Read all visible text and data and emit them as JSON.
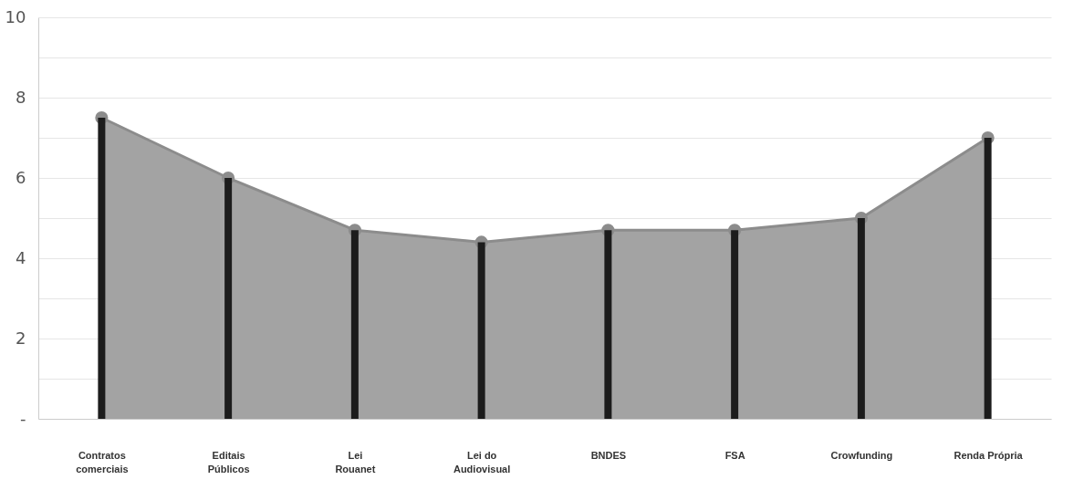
{
  "chart_data": {
    "type": "area",
    "categories": [
      "Contratos\ncomerciais",
      "Editais\nPúblicos",
      "Lei\nRouanet",
      "Lei do\nAudiovisual",
      "BNDES",
      "FSA",
      "Crowfunding",
      "Renda Própria"
    ],
    "series": [
      {
        "color": "#a3a3a3",
        "values": [
          7.5,
          6.0,
          4.7,
          4.4,
          4.7,
          4.7,
          5.0,
          7.0
        ]
      },
      {
        "type": "bar",
        "color": "#1c1c1c",
        "values": [
          7.5,
          6.0,
          4.7,
          4.4,
          4.7,
          4.7,
          5.0,
          7.0
        ]
      }
    ],
    "ylim": [
      0,
      10
    ],
    "yticks": [
      {
        "value": 0,
        "label": "-"
      },
      {
        "value": 1,
        "label": null
      },
      2,
      {
        "value": 3,
        "label": null
      },
      4,
      {
        "value": 5,
        "label": null
      },
      6,
      {
        "value": 7,
        "label": null
      },
      8,
      {
        "value": 9,
        "label": null
      },
      10
    ],
    "grid": "y",
    "marker": "circle"
  }
}
